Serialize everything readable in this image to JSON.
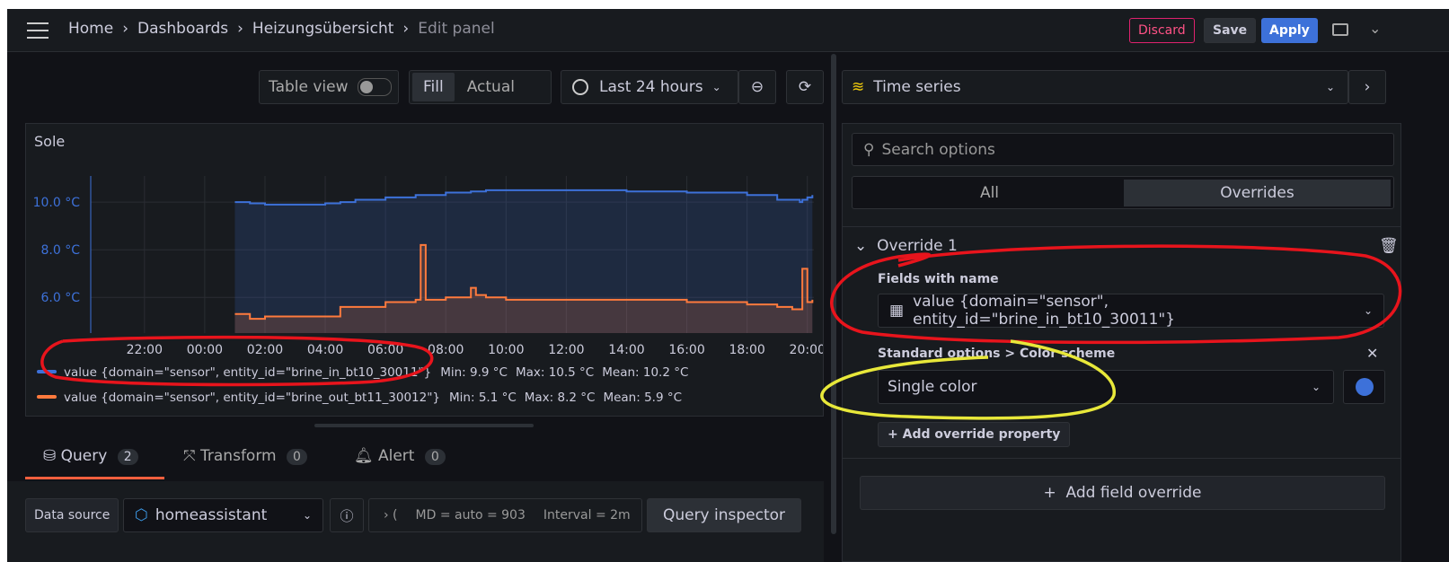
{
  "breadcrumb": [
    "Home",
    "Dashboards",
    "Heizungsübersicht",
    "Edit panel"
  ],
  "header_buttons": {
    "discard": "Discard",
    "save": "Save",
    "apply": "Apply"
  },
  "toolbar": {
    "table_view": "Table view",
    "fill": "Fill",
    "actual": "Actual",
    "time_range": "Last 24 hours"
  },
  "chart_data": {
    "type": "line",
    "title": "Sole",
    "x": [
      "01:00",
      "01:30",
      "02:00",
      "04:00",
      "04:30",
      "05:00",
      "06:00",
      "07:00",
      "07:10",
      "07:20",
      "08:00",
      "08:50",
      "09:00",
      "09:20",
      "10:00",
      "12:00",
      "14:00",
      "16:00",
      "18:00",
      "19:00",
      "19:30",
      "19:45",
      "19:50",
      "20:00",
      "20:10"
    ],
    "xlim": [
      "20:13",
      "20:13"
    ],
    "xticks": [
      "22:00",
      "00:00",
      "02:00",
      "04:00",
      "06:00",
      "08:00",
      "10:00",
      "12:00",
      "14:00",
      "16:00",
      "18:00",
      "20:00"
    ],
    "ylim": [
      4.5,
      11.1
    ],
    "yticks": [
      {
        "value": 6,
        "label": "6.0 °C"
      },
      {
        "value": 8,
        "label": "8.0 °C"
      },
      {
        "value": 10,
        "label": "10.0 °C"
      }
    ],
    "grid": true,
    "series": [
      {
        "name": "value {domain=\"sensor\", entity_id=\"brine_in_bt10_30011\"}",
        "color": "#3d71d9",
        "stats": [
          "Min: 9.9 °C",
          "Max: 10.5 °C",
          "Mean: 10.2 °C"
        ],
        "values": [
          10.0,
          9.95,
          9.9,
          9.95,
          10.0,
          10.1,
          10.2,
          10.3,
          10.3,
          10.3,
          10.4,
          10.45,
          10.45,
          10.5,
          10.5,
          10.5,
          10.45,
          10.4,
          10.3,
          10.1,
          10.1,
          10.0,
          10.1,
          10.2,
          10.3
        ]
      },
      {
        "name": "value {domain=\"sensor\", entity_id=\"brine_out_bt11_30012\"}",
        "color": "#ff7a3d",
        "stats": [
          "Min: 5.1 °C",
          "Max: 8.2 °C",
          "Mean: 5.9 °C"
        ],
        "values": [
          5.3,
          5.1,
          5.2,
          5.2,
          5.6,
          5.6,
          5.8,
          5.9,
          8.2,
          5.9,
          6.0,
          6.4,
          6.1,
          6.0,
          5.9,
          5.9,
          5.9,
          5.8,
          5.7,
          5.6,
          5.5,
          5.5,
          7.2,
          5.8,
          5.9
        ]
      }
    ]
  },
  "query_tabs": [
    {
      "label": "Query",
      "count": 2
    },
    {
      "label": "Transform",
      "count": 0
    },
    {
      "label": "Alert",
      "count": 0
    }
  ],
  "query_row": {
    "data_source_label": "Data source",
    "data_source": "homeassistant",
    "md": "MD = auto = 903",
    "interval": "Interval = 2m",
    "inspector": "Query inspector"
  },
  "options": {
    "visualization": "Time series",
    "search": "Search options",
    "tabs": [
      "All",
      "Overrides"
    ],
    "override": {
      "title": "Override 1",
      "matcher_label": "Fields with name",
      "matcher_value": "value {domain=\"sensor\", entity_id=\"brine_in_bt10_30011\"}",
      "property_label": "Standard options > Color scheme",
      "property_value": "Single color",
      "add_property": "Add override property"
    },
    "add_field_override": "Add field override"
  }
}
